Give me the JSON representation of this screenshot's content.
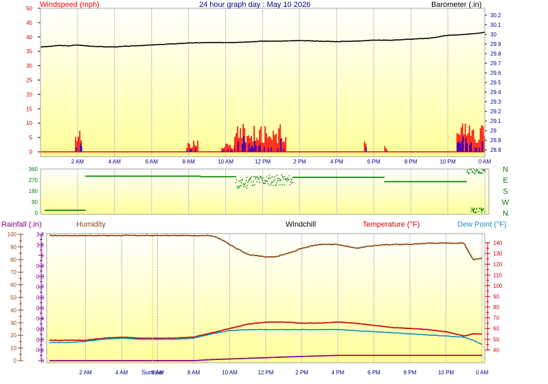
{
  "header": {
    "top_left": "Windspeed (mph)",
    "top_center": "24 hour graph day : May 10 2026",
    "top_right": "Barometer (.in)"
  },
  "legend": {
    "rainfall": "Rainfall (.in)",
    "humidity": "Humidity",
    "windchill": "Windchill",
    "temperature": "Temperature (°F)",
    "dewpoint": "Dew Point (°F)"
  },
  "markers": {
    "sunrise": "Sunrise"
  },
  "colors": {
    "windspeed_axis": "#ff0000",
    "gust": "#ff0000",
    "wind": "#0000ff",
    "barometer": "#000000",
    "direction": "#008000",
    "humidity": "#8b4513",
    "temperature": "#cc0000",
    "windchill": "#000000",
    "dewpoint": "#1e90c0",
    "rainfall": "#800080",
    "grid": "#c8c8c8",
    "plot_top": "#ffffff",
    "plot_bottom": "#ffff99"
  },
  "chart_data": [
    {
      "type": "bar",
      "name": "wind",
      "x_ticks": [
        "2 AM",
        "4 AM",
        "6 AM",
        "8 AM",
        "10 AM",
        "12 PM",
        "2 PM",
        "4 PM",
        "6 PM",
        "8 PM",
        "10 PM",
        "0 AM"
      ],
      "y_left_ticks": [
        "0",
        "5",
        "10",
        "15",
        "20",
        "25",
        "30",
        "35",
        "40",
        "45",
        "50"
      ],
      "ylim_left": [
        0,
        50
      ],
      "y_right_ticks": [
        "28.8",
        "28.9",
        "29",
        "29.1",
        "29.2",
        "29.3",
        "29.4",
        "29.5",
        "29.6",
        "29.7",
        "29.8",
        "29.9",
        "30",
        "30.1",
        "30.2"
      ],
      "ylim_right": [
        28.78,
        30.25
      ],
      "gust_bursts": [
        {
          "from": 1.9,
          "to": 2.2,
          "peak": 8
        },
        {
          "from": 7.9,
          "to": 8.5,
          "peak": 4
        },
        {
          "from": 9.8,
          "to": 10.5,
          "peak": 3
        },
        {
          "from": 10.5,
          "to": 13.3,
          "peak": 10
        },
        {
          "from": 17.5,
          "to": 17.6,
          "peak": 5
        },
        {
          "from": 18.6,
          "to": 18.7,
          "peak": 3
        },
        {
          "from": 22.5,
          "to": 24.0,
          "peak": 10
        }
      ],
      "barometer": {
        "x": [
          0,
          0.5,
          1,
          1.5,
          2,
          2.5,
          3,
          3.5,
          4,
          5,
          6,
          7,
          8,
          9,
          10,
          11,
          12,
          13,
          14,
          15,
          16,
          17,
          18,
          19,
          20,
          21,
          22,
          23,
          24
        ],
        "y": [
          29.87,
          29.875,
          29.885,
          29.88,
          29.89,
          29.88,
          29.875,
          29.87,
          29.87,
          29.88,
          29.89,
          29.9,
          29.91,
          29.915,
          29.915,
          29.92,
          29.93,
          29.93,
          29.935,
          29.93,
          29.925,
          29.93,
          29.94,
          29.94,
          29.95,
          29.96,
          29.99,
          30.0,
          30.02
        ]
      }
    },
    {
      "type": "scatter",
      "name": "wind_direction",
      "x_ticks": [
        "2 AM",
        "4 AM",
        "6 AM",
        "8 AM",
        "10 AM",
        "12 PM",
        "2 PM",
        "4 PM",
        "6 PM",
        "8 PM",
        "10 PM",
        "0 AM"
      ],
      "y_left_ticks": [
        "0",
        "90",
        "180",
        "270",
        "360"
      ],
      "ylim": [
        0,
        360
      ],
      "y_right_ticks": [
        "N",
        "W",
        "S",
        "E",
        "N"
      ],
      "segments": [
        {
          "from": 0.0,
          "to": 2.2,
          "value": 20
        },
        {
          "from": 2.2,
          "to": 8.5,
          "value": 300
        },
        {
          "from": 8.5,
          "to": 10.4,
          "value": 295
        },
        {
          "from": 10.4,
          "to": 11.0,
          "value": 235
        },
        {
          "from": 11.0,
          "to": 13.5,
          "value": 265
        },
        {
          "from": 13.5,
          "to": 18.5,
          "value": 290
        },
        {
          "from": 18.5,
          "to": 23.0,
          "value": 255
        },
        {
          "from": 23.0,
          "to": 24.0,
          "value": 340
        }
      ]
    },
    {
      "type": "line",
      "name": "temperature_humidity",
      "x_ticks": [
        "2 AM",
        "4 AM",
        "6 AM",
        "8 AM",
        "10 AM",
        "12 PM",
        "2 PM",
        "4 PM",
        "6 PM",
        "8 PM",
        "10 PM",
        "0 AM"
      ],
      "rain_ticks": [
        "0",
        "0.1",
        "0.2",
        "0.3",
        "0.4",
        "0.5",
        "0.6",
        "0.7",
        "0.8",
        "0.9",
        "1",
        "1.1",
        "1.2"
      ],
      "humidity_ticks": [
        "0",
        "10",
        "20",
        "30",
        "40",
        "50",
        "60",
        "70",
        "80",
        "90",
        "100"
      ],
      "temp_ticks": [
        "40",
        "50",
        "60",
        "70",
        "80",
        "90",
        "100",
        "110",
        "120",
        "130",
        "140"
      ],
      "temp_lim": [
        30,
        148
      ],
      "series": [
        {
          "name": "Humidity",
          "x": [
            0,
            1,
            2,
            2.5,
            3,
            4,
            5,
            6,
            7,
            8,
            9,
            9.5,
            10,
            10.5,
            11,
            12,
            12.5,
            13,
            13.5,
            14,
            15,
            16,
            17,
            18,
            19,
            20,
            21,
            22,
            23,
            23.5,
            24
          ],
          "y": [
            99,
            99,
            99,
            99,
            99,
            99,
            99,
            99,
            99,
            99,
            99,
            96,
            92,
            88,
            84,
            82,
            82,
            84,
            86,
            89,
            92,
            92,
            89,
            91,
            92,
            92,
            93,
            93,
            93,
            80,
            81
          ]
        },
        {
          "name": "Temperature (°F)",
          "x": [
            0,
            1,
            2,
            3,
            4,
            5,
            6,
            7,
            8,
            9,
            10,
            11,
            12,
            13,
            14,
            15,
            16,
            17,
            18,
            19,
            20,
            21,
            22,
            23,
            23.5,
            24
          ],
          "y": [
            49,
            49,
            49,
            51,
            52,
            51,
            51,
            51,
            52,
            56,
            60,
            64,
            66,
            66,
            65,
            65,
            66,
            65,
            63,
            61,
            60,
            59,
            57,
            53,
            55,
            55
          ]
        },
        {
          "name": "Dew Point (°F)",
          "x": [
            0,
            1,
            2,
            3,
            4,
            5,
            6,
            7,
            8,
            9,
            10,
            11,
            12,
            13,
            14,
            15,
            16,
            17,
            18,
            19,
            20,
            21,
            22,
            23,
            23.5,
            24
          ],
          "y": [
            47,
            47,
            48,
            50,
            51,
            50,
            50,
            50,
            51,
            55,
            58,
            59,
            59,
            59,
            59,
            59,
            59,
            58,
            57,
            56,
            55,
            54,
            53,
            52,
            49,
            45
          ]
        },
        {
          "name": "Rainfall (.in)",
          "x": [
            0,
            8,
            9,
            14,
            16,
            20,
            24
          ],
          "y": [
            0,
            0,
            0.01,
            0.04,
            0.05,
            0.05,
            0.05
          ]
        }
      ]
    }
  ]
}
